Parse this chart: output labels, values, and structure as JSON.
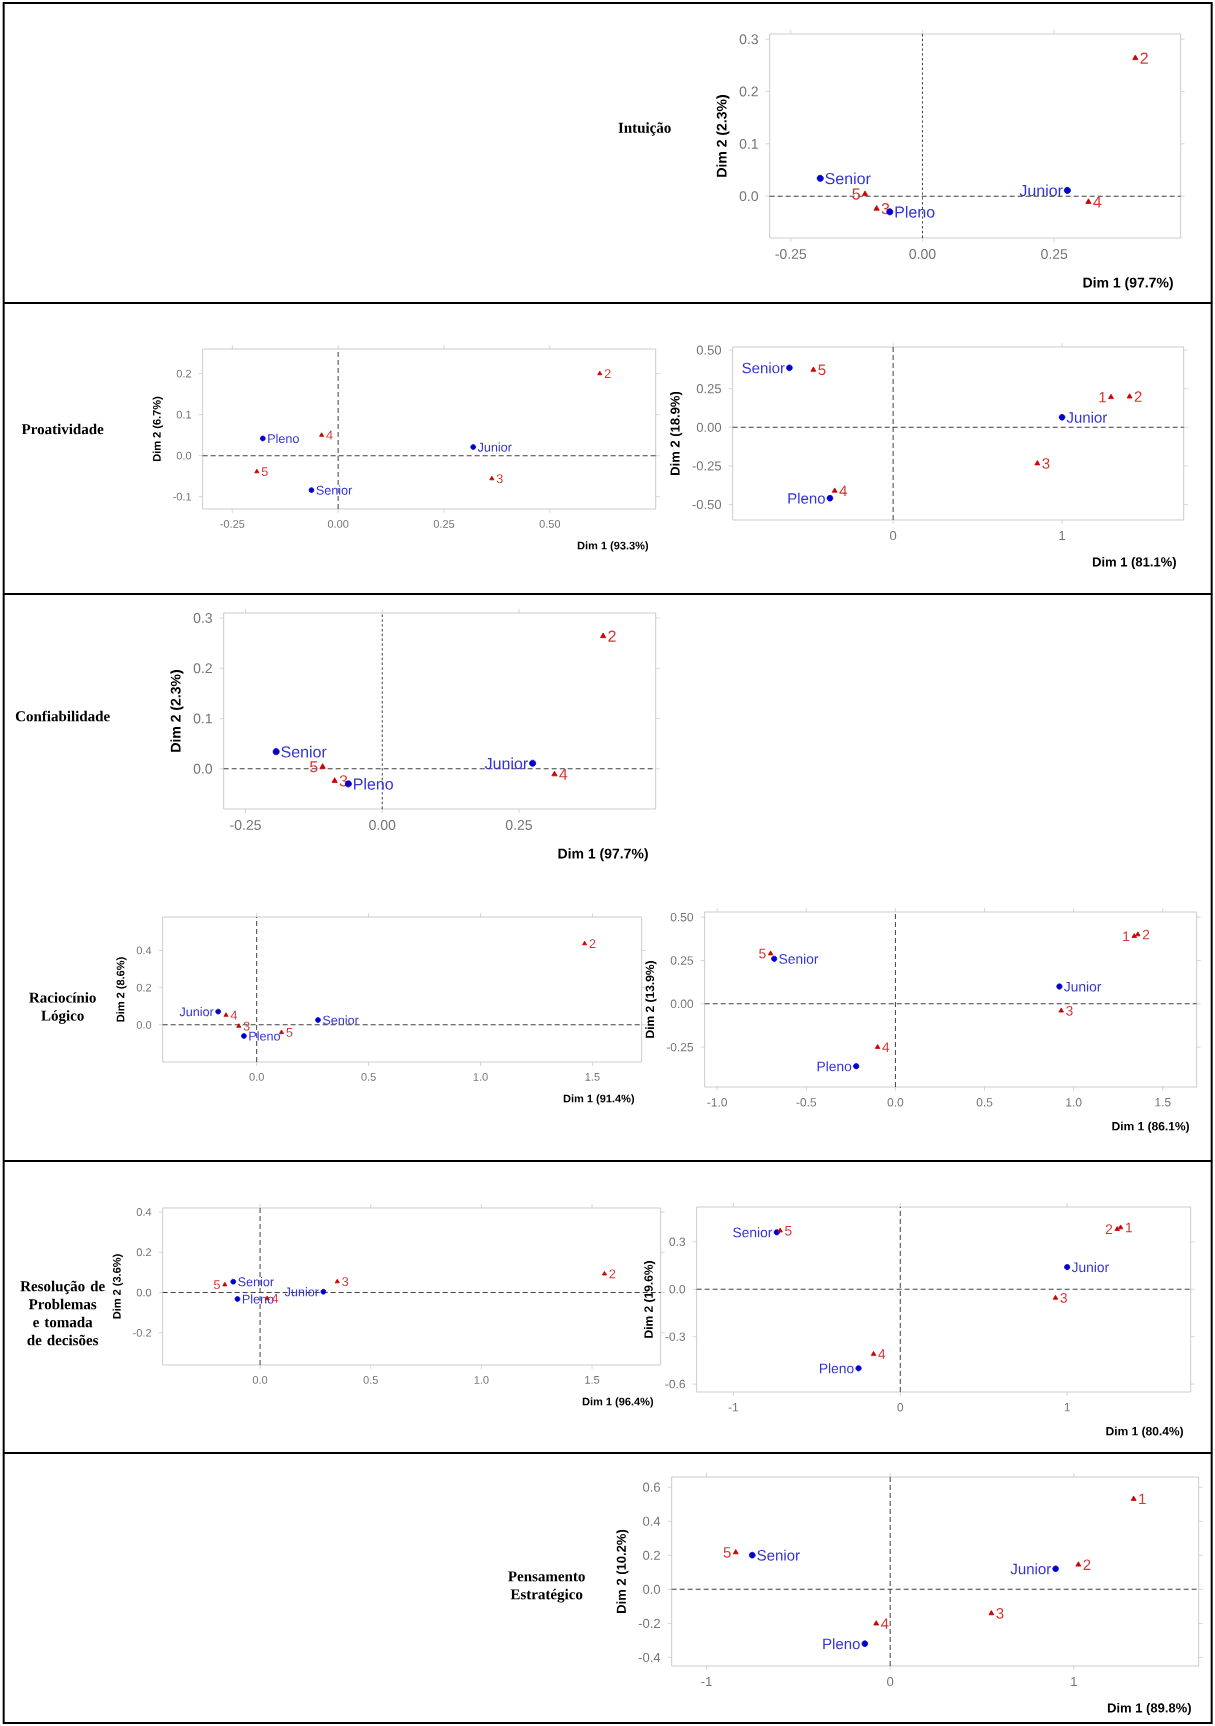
{
  "chart_data": [
    {
      "type": "scatter",
      "title": "Intuição",
      "xlabel": "Dim 1 (97.7%)",
      "ylabel": "Dim 2 (2.3%)",
      "xlim": [
        -0.29,
        0.49
      ],
      "ylim": [
        -0.08,
        0.31
      ],
      "xticks": [
        -0.25,
        {
          "value": 0,
          "label": "0.00"
        },
        0.25
      ],
      "yticks": [
        {
          "value": 0,
          "label": "0.0"
        },
        0.1,
        0.2,
        0.3
      ],
      "ref_lines": [
        {
          "axis": "x",
          "value": 0,
          "line_style": "dotted"
        },
        {
          "axis": "y",
          "value": 0,
          "line_style": "dashed"
        }
      ],
      "series": [
        {
          "color": "#0000cc",
          "marker": "circle",
          "x": [
            0.275,
            -0.062,
            -0.194
          ],
          "values": [
            0.011,
            -0.03,
            0.034
          ]
        },
        {
          "color": "#cc0000",
          "marker": "triangle",
          "x": [
            0.404,
            -0.087,
            0.315,
            -0.109
          ],
          "values": [
            0.264,
            -0.024,
            -0.011,
            0.004
          ]
        }
      ],
      "annotations": [
        {
          "text": "Junior",
          "x": 0.275,
          "y": 0.011
        },
        {
          "text": "Pleno",
          "x": -0.062,
          "y": -0.03
        },
        {
          "text": "Senior",
          "x": -0.194,
          "y": 0.034
        },
        {
          "text": "2",
          "x": 0.404,
          "y": 0.264
        },
        {
          "text": "3",
          "x": -0.087,
          "y": -0.024
        },
        {
          "text": "4",
          "x": 0.315,
          "y": -0.011
        },
        {
          "text": "5",
          "x": -0.109,
          "y": 0.004
        }
      ]
    },
    {
      "type": "scatter",
      "title": "Proatividade",
      "xlabel": "Dim 1 (93.3%)",
      "ylabel": "Dim 2 (6.7%)",
      "xlim": [
        -0.32,
        0.75
      ],
      "ylim": [
        -0.13,
        0.26
      ],
      "xticks": [
        -0.25,
        {
          "value": 0,
          "label": "0.00"
        },
        0.25,
        {
          "value": 0.5,
          "label": "0.50"
        }
      ],
      "yticks": [
        -0.1,
        {
          "value": 0,
          "label": "0.0"
        },
        0.1,
        0.2
      ],
      "ref_lines": [
        {
          "axis": "x",
          "value": 0,
          "line_style": "dashed"
        },
        {
          "axis": "y",
          "value": 0,
          "line_style": "dashed"
        }
      ],
      "series": [
        {
          "color": "#0000cc",
          "marker": "circle",
          "x": [
            0.319,
            -0.178,
            -0.063
          ],
          "values": [
            0.021,
            0.042,
            -0.084
          ]
        },
        {
          "color": "#cc0000",
          "marker": "triangle",
          "x": [
            0.618,
            0.363,
            -0.039,
            -0.192
          ],
          "values": [
            0.2,
            -0.056,
            0.05,
            -0.039
          ]
        }
      ],
      "annotations": [
        {
          "text": "Junior",
          "x": 0.319,
          "y": 0.021
        },
        {
          "text": "Pleno",
          "x": -0.178,
          "y": 0.042
        },
        {
          "text": "Senior",
          "x": -0.063,
          "y": -0.084
        },
        {
          "text": "2",
          "x": 0.618,
          "y": 0.2
        },
        {
          "text": "3",
          "x": 0.363,
          "y": -0.056
        },
        {
          "text": "4",
          "x": -0.039,
          "y": 0.05
        },
        {
          "text": "5",
          "x": -0.192,
          "y": -0.039
        }
      ]
    },
    {
      "type": "scatter",
      "xlabel": "Dim 1 (81.1%)",
      "ylabel": "Dim 2 (18.9%)",
      "xlim": [
        -0.95,
        1.72
      ],
      "ylim": [
        -0.6,
        0.52
      ],
      "xticks": [
        0,
        1
      ],
      "yticks": [
        {
          "value": -0.5,
          "label": "-0.50"
        },
        -0.25,
        {
          "value": 0,
          "label": "0.00"
        },
        0.25,
        {
          "value": 0.5,
          "label": "0.50"
        }
      ],
      "ref_lines": [
        {
          "axis": "x",
          "value": 0,
          "line_style": "dashed"
        },
        {
          "axis": "y",
          "value": 0,
          "line_style": "dashed"
        }
      ],
      "series": [
        {
          "color": "#0000cc",
          "marker": "circle",
          "x": [
            1.0,
            -0.374,
            -0.614
          ],
          "values": [
            0.065,
            -0.459,
            0.385
          ]
        },
        {
          "color": "#cc0000",
          "marker": "triangle",
          "x": [
            1.29,
            1.4,
            0.854,
            -0.346,
            -0.472
          ],
          "values": [
            0.195,
            0.199,
            -0.234,
            -0.411,
            0.372
          ]
        }
      ],
      "annotations": [
        {
          "text": "Junior",
          "x": 1.0,
          "y": 0.065
        },
        {
          "text": "Pleno",
          "x": -0.374,
          "y": -0.459
        },
        {
          "text": "Senior",
          "x": -0.614,
          "y": 0.385
        },
        {
          "text": "1",
          "x": 1.29,
          "y": 0.195
        },
        {
          "text": "2",
          "x": 1.4,
          "y": 0.199
        },
        {
          "text": "3",
          "x": 0.854,
          "y": -0.234
        },
        {
          "text": "4",
          "x": -0.346,
          "y": -0.411
        },
        {
          "text": "5",
          "x": -0.472,
          "y": 0.372
        }
      ]
    },
    {
      "type": "scatter",
      "title": "Confiabilidade",
      "xlabel": "Dim 1 (97.7%)",
      "ylabel": "Dim 2 (2.3%)",
      "xlim": [
        -0.29,
        0.5
      ],
      "ylim": [
        -0.08,
        0.31
      ],
      "xticks": [
        -0.25,
        {
          "value": 0,
          "label": "0.00"
        },
        0.25
      ],
      "yticks": [
        {
          "value": 0,
          "label": "0.0"
        },
        0.1,
        0.2,
        0.3
      ],
      "ref_lines": [
        {
          "axis": "x",
          "value": 0,
          "line_style": "dotted"
        },
        {
          "axis": "y",
          "value": 0,
          "line_style": "dashed"
        }
      ],
      "series": [
        {
          "color": "#0000cc",
          "marker": "circle",
          "x": [
            0.275,
            -0.062,
            -0.194
          ],
          "values": [
            0.011,
            -0.03,
            0.034
          ]
        },
        {
          "color": "#cc0000",
          "marker": "triangle",
          "x": [
            0.404,
            -0.087,
            0.315,
            -0.109
          ],
          "values": [
            0.264,
            -0.024,
            -0.011,
            0.004
          ]
        }
      ],
      "annotations": [
        {
          "text": "Junior",
          "x": 0.275,
          "y": 0.011
        },
        {
          "text": "Pleno",
          "x": -0.062,
          "y": -0.03
        },
        {
          "text": "Senior",
          "x": -0.194,
          "y": 0.034
        },
        {
          "text": "2",
          "x": 0.404,
          "y": 0.264
        },
        {
          "text": "3",
          "x": -0.087,
          "y": -0.024
        },
        {
          "text": "4",
          "x": 0.315,
          "y": -0.011
        },
        {
          "text": "5",
          "x": -0.109,
          "y": 0.004
        }
      ]
    },
    {
      "type": "scatter",
      "title": "Raciocínio Lógico",
      "xlabel": "Dim 1 (91.4%)",
      "ylabel": "Dim 2 (8.6%)",
      "xlim": [
        -0.42,
        1.72
      ],
      "ylim": [
        -0.2,
        0.58
      ],
      "xticks": [
        {
          "value": 0,
          "label": "0.0"
        },
        0.5,
        {
          "value": 1,
          "label": "1.0"
        },
        1.5
      ],
      "yticks": [
        {
          "value": 0,
          "label": "0.0"
        },
        0.2,
        0.4
      ],
      "ref_lines": [
        {
          "axis": "x",
          "value": 0,
          "line_style": "dashed"
        },
        {
          "axis": "y",
          "value": 0,
          "line_style": "dashed"
        }
      ],
      "series": [
        {
          "color": "#0000cc",
          "marker": "circle",
          "x": [
            -0.172,
            -0.057,
            0.274
          ],
          "values": [
            0.071,
            -0.06,
            0.026
          ]
        },
        {
          "color": "#cc0000",
          "marker": "triangle",
          "x": [
            1.465,
            -0.08,
            -0.137,
            0.111
          ],
          "values": [
            0.437,
            -0.007,
            0.052,
            -0.041
          ]
        }
      ],
      "annotations": [
        {
          "text": "Junior",
          "x": -0.172,
          "y": 0.071
        },
        {
          "text": "Pleno",
          "x": -0.057,
          "y": -0.06
        },
        {
          "text": "Senior",
          "x": 0.274,
          "y": 0.026
        },
        {
          "text": "2",
          "x": 1.465,
          "y": 0.437
        },
        {
          "text": "3",
          "x": -0.08,
          "y": -0.007
        },
        {
          "text": "4",
          "x": -0.137,
          "y": 0.052
        },
        {
          "text": "5",
          "x": 0.111,
          "y": -0.041
        }
      ]
    },
    {
      "type": "scatter",
      "xlabel": "Dim 1 (86.1%)",
      "ylabel": "Dim 2 (13.9%)",
      "xlim": [
        -1.07,
        1.69
      ],
      "ylim": [
        -0.48,
        0.53
      ],
      "xticks": [
        {
          "value": -1,
          "label": "-1.0"
        },
        -0.5,
        {
          "value": 0,
          "label": "0.0"
        },
        0.5,
        {
          "value": 1,
          "label": "1.0"
        },
        1.5
      ],
      "yticks": [
        -0.25,
        {
          "value": 0,
          "label": "0.00"
        },
        0.25,
        {
          "value": 0.5,
          "label": "0.50"
        }
      ],
      "ref_lines": [
        {
          "axis": "x",
          "value": 0,
          "line_style": "dashed"
        },
        {
          "axis": "y",
          "value": 0,
          "line_style": "dashed"
        }
      ],
      "series": [
        {
          "color": "#0000cc",
          "marker": "circle",
          "x": [
            0.92,
            -0.22,
            -0.68
          ],
          "values": [
            0.1,
            -0.36,
            0.26
          ]
        },
        {
          "color": "#cc0000",
          "marker": "triangle",
          "x": [
            1.34,
            1.36,
            0.93,
            -0.1,
            -0.7
          ],
          "values": [
            0.39,
            0.4,
            -0.04,
            -0.25,
            0.29
          ]
        }
      ],
      "annotations": [
        {
          "text": "Junior",
          "x": 0.92,
          "y": 0.1
        },
        {
          "text": "Pleno",
          "x": -0.22,
          "y": -0.36
        },
        {
          "text": "Senior",
          "x": -0.68,
          "y": 0.26
        },
        {
          "text": "1",
          "x": 1.34,
          "y": 0.39
        },
        {
          "text": "2",
          "x": 1.36,
          "y": 0.4
        },
        {
          "text": "3",
          "x": 0.93,
          "y": -0.04
        },
        {
          "text": "4",
          "x": -0.1,
          "y": -0.25
        },
        {
          "text": "5",
          "x": -0.7,
          "y": 0.29
        }
      ]
    },
    {
      "type": "scatter",
      "title": "Resolução de Problemas e tomada de decisões",
      "xlabel": "Dim 1 (96.4%)",
      "ylabel": "Dim 2 (3.6%)",
      "xlim": [
        -0.44,
        1.81
      ],
      "ylim": [
        -0.36,
        0.42
      ],
      "xticks": [
        {
          "value": 0,
          "label": "0.0"
        },
        0.5,
        {
          "value": 1,
          "label": "1.0"
        },
        1.5
      ],
      "yticks": [
        -0.2,
        {
          "value": 0,
          "label": "0.0"
        },
        0.2,
        0.4
      ],
      "ref_lines": [
        {
          "axis": "x",
          "value": 0,
          "line_style": "dashed"
        },
        {
          "axis": "y",
          "value": 0,
          "line_style": "dashed"
        }
      ],
      "series": [
        {
          "color": "#0000cc",
          "marker": "circle",
          "x": [
            0.286,
            -0.102,
            -0.121
          ],
          "values": [
            0.004,
            -0.032,
            0.054
          ]
        },
        {
          "color": "#cc0000",
          "marker": "triangle",
          "x": [
            1.556,
            0.349,
            0.032,
            -0.159
          ],
          "values": [
            0.093,
            0.054,
            -0.029,
            0.039
          ]
        }
      ],
      "annotations": [
        {
          "text": "Junior",
          "x": 0.286,
          "y": 0.004
        },
        {
          "text": "Pleno",
          "x": -0.102,
          "y": -0.032
        },
        {
          "text": "Senior",
          "x": -0.121,
          "y": 0.054
        },
        {
          "text": "2",
          "x": 1.556,
          "y": 0.093
        },
        {
          "text": "3",
          "x": 0.349,
          "y": 0.054
        },
        {
          "text": "4",
          "x": 0.032,
          "y": -0.029
        },
        {
          "text": "5",
          "x": -0.159,
          "y": 0.039
        }
      ]
    },
    {
      "type": "scatter",
      "xlabel": "Dim 1 (80.4%)",
      "ylabel": "Dim 2 (19.6%)",
      "xlim": [
        -1.22,
        1.74
      ],
      "ylim": [
        -0.65,
        0.52
      ],
      "xticks": [
        -1,
        0,
        1
      ],
      "yticks": [
        -0.6,
        -0.3,
        {
          "value": 0,
          "label": "0.0"
        },
        0.3
      ],
      "ref_lines": [
        {
          "axis": "x",
          "value": 0,
          "line_style": "dashed"
        },
        {
          "axis": "y",
          "value": 0,
          "line_style": "dashed"
        }
      ],
      "series": [
        {
          "color": "#0000cc",
          "marker": "circle",
          "x": [
            1.0,
            -0.25,
            -0.74
          ],
          "values": [
            0.14,
            -0.5,
            0.36
          ]
        },
        {
          "color": "#cc0000",
          "marker": "triangle",
          "x": [
            1.32,
            1.3,
            0.93,
            -0.16,
            -0.72
          ],
          "values": [
            0.39,
            0.38,
            -0.055,
            -0.41,
            0.37
          ]
        }
      ],
      "annotations": [
        {
          "text": "Junior",
          "x": 1.0,
          "y": 0.14
        },
        {
          "text": "Pleno",
          "x": -0.25,
          "y": -0.5
        },
        {
          "text": "Senior",
          "x": -0.74,
          "y": 0.36
        },
        {
          "text": "1",
          "x": 1.32,
          "y": 0.39
        },
        {
          "text": "2",
          "x": 1.3,
          "y": 0.38
        },
        {
          "text": "3",
          "x": 0.93,
          "y": -0.055
        },
        {
          "text": "4",
          "x": -0.16,
          "y": -0.41
        },
        {
          "text": "5",
          "x": -0.72,
          "y": 0.37
        }
      ]
    },
    {
      "type": "scatter",
      "title": "Pensamento Estratégico",
      "xlabel": "Dim 1 (89.8%)",
      "ylabel": "Dim 2 (10.2%)",
      "xlim": [
        -1.19,
        1.68
      ],
      "ylim": [
        -0.45,
        0.66
      ],
      "xticks": [
        -1,
        0,
        1
      ],
      "yticks": [
        -0.4,
        -0.2,
        {
          "value": 0,
          "label": "0.0"
        },
        0.2,
        0.4,
        0.6
      ],
      "ref_lines": [
        {
          "axis": "x",
          "value": 0,
          "line_style": "dashed"
        },
        {
          "axis": "y",
          "value": 0,
          "line_style": "dashed"
        }
      ],
      "series": [
        {
          "color": "#0000cc",
          "marker": "circle",
          "x": [
            0.901,
            -0.138,
            -0.751
          ],
          "values": [
            0.121,
            -0.319,
            0.201
          ]
        },
        {
          "color": "#cc0000",
          "marker": "triangle",
          "x": [
            1.326,
            1.025,
            0.551,
            -0.076,
            -0.841
          ],
          "values": [
            0.531,
            0.145,
            -0.141,
            -0.201,
            0.217
          ]
        }
      ],
      "annotations": [
        {
          "text": "Junior",
          "x": 0.901,
          "y": 0.121
        },
        {
          "text": "Pleno",
          "x": -0.138,
          "y": -0.319
        },
        {
          "text": "Senior",
          "x": -0.751,
          "y": 0.201
        },
        {
          "text": "1",
          "x": 1.326,
          "y": 0.531
        },
        {
          "text": "2",
          "x": 1.025,
          "y": 0.145
        },
        {
          "text": "3",
          "x": 0.551,
          "y": -0.141
        },
        {
          "text": "4",
          "x": -0.076,
          "y": -0.201
        },
        {
          "text": "5",
          "x": -0.841,
          "y": 0.217
        }
      ]
    }
  ]
}
